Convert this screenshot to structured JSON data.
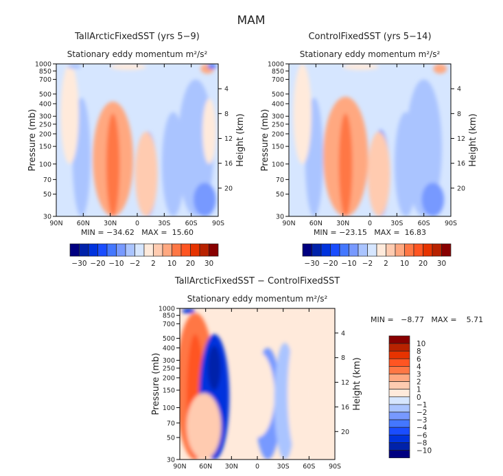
{
  "main_title": "MAM",
  "chart_data": [
    {
      "type": "heatmap",
      "title": "TallArcticFixedSST (yrs 5−9)",
      "subtitle": "Stationary eddy momentum",
      "units": "m²/s²",
      "xlabel": "",
      "ylabel": "Pressure (mb)",
      "y2label": "Height (km)",
      "stats": "MIN = −34.62   MAX =  15.60",
      "x_ticks": [
        "90N",
        "60N",
        "30N",
        "0",
        "30S",
        "60S",
        "90S"
      ],
      "y_ticks": [
        30,
        50,
        70,
        100,
        150,
        200,
        250,
        300,
        400,
        500,
        700,
        850,
        1000
      ],
      "y2_ticks": [
        4,
        8,
        12,
        16,
        20
      ],
      "colorbar_labels": [
        "−30",
        "−20",
        "−10",
        "−2",
        "2",
        "10",
        "20",
        "30"
      ],
      "blobs": [
        [
          27,
          200,
          10,
          9,
          220,
          600
        ],
        [
          27,
          200,
          12,
          3,
          120,
          250
        ],
        [
          -12,
          150,
          -6,
          4,
          60,
          300
        ],
        [
          -10,
          150,
          5,
          5,
          60,
          200
        ],
        [
          62,
          300,
          -3,
          4,
          160,
          500
        ],
        [
          -40,
          250,
          -3,
          5,
          80,
          300
        ],
        [
          -65,
          100,
          -3,
          8,
          600,
          1000
        ],
        [
          -75,
          40,
          -5,
          5,
          25,
          20
        ],
        [
          75,
          400,
          2,
          4,
          600,
          300
        ],
        [
          -78,
          900,
          8,
          3,
          120,
          100
        ],
        [
          -83,
          950,
          -12,
          2,
          60,
          60
        ],
        [
          70,
          950,
          -4,
          3,
          60,
          60
        ],
        [
          10,
          950,
          2,
          8,
          50,
          80
        ],
        [
          -80,
          300,
          2,
          3,
          150,
          200
        ]
      ]
    },
    {
      "type": "heatmap",
      "title": "ControlFixedSST (yrs 5−14)",
      "subtitle": "Stationary eddy momentum",
      "units": "m²/s²",
      "xlabel": "",
      "ylabel": "Pressure (mb)",
      "y2label": "Height (km)",
      "stats": "MIN = −23.15   MAX =  16.83",
      "x_ticks": [
        "90N",
        "60N",
        "30N",
        "0",
        "30S",
        "60S",
        "90S"
      ],
      "y_ticks": [
        30,
        50,
        70,
        100,
        150,
        200,
        250,
        300,
        400,
        500,
        700,
        850,
        1000
      ],
      "y2_ticks": [
        4,
        8,
        12,
        16,
        20
      ],
      "colorbar_labels": [
        "−30",
        "−20",
        "−10",
        "−2",
        "2",
        "10",
        "20",
        "30"
      ],
      "blobs": [
        [
          27,
          220,
          10,
          10,
          250,
          600
        ],
        [
          27,
          200,
          12,
          3,
          120,
          250
        ],
        [
          -12,
          150,
          -6,
          4,
          70,
          300
        ],
        [
          -10,
          150,
          5,
          5,
          60,
          200
        ],
        [
          62,
          300,
          -3,
          4,
          160,
          500
        ],
        [
          -40,
          250,
          -3,
          5,
          80,
          300
        ],
        [
          -60,
          100,
          -3,
          8,
          600,
          1000
        ],
        [
          -70,
          40,
          -5,
          5,
          25,
          20
        ],
        [
          75,
          400,
          2,
          4,
          600,
          300
        ],
        [
          -78,
          900,
          8,
          3,
          120,
          100
        ],
        [
          10,
          950,
          2,
          8,
          50,
          80
        ]
      ]
    },
    {
      "type": "heatmap",
      "title": "TallArcticFixedSST − ControlFixedSST",
      "subtitle": "Stationary eddy momentum",
      "units": "m²/s²",
      "xlabel": "",
      "ylabel": "Pressure (mb)",
      "y2label": "Height (km)",
      "stats": "MIN =   −8.77   MAX =    5.71",
      "x_ticks": [
        "90N",
        "60N",
        "30N",
        "0",
        "30S",
        "60S",
        "90S"
      ],
      "y_ticks": [
        30,
        50,
        70,
        100,
        150,
        200,
        250,
        300,
        400,
        500,
        700,
        850,
        1000
      ],
      "y2_ticks": [
        4,
        8,
        12,
        16,
        20
      ],
      "colorbar_labels": [
        "10",
        "8",
        "6",
        "4",
        "3",
        "2",
        "1",
        "0",
        "−1",
        "−2",
        "−3",
        "−4",
        "−6",
        "−8",
        "−10"
      ],
      "blobs": [
        [
          72,
          250,
          4,
          9,
          650,
          900
        ],
        [
          72,
          300,
          6,
          4,
          250,
          300
        ],
        [
          50,
          300,
          -6,
          7,
          250,
          400
        ],
        [
          50,
          300,
          -8,
          3,
          120,
          150
        ],
        [
          62,
          60,
          2,
          8,
          80,
          60
        ],
        [
          -12,
          250,
          -2,
          6,
          150,
          400
        ],
        [
          0,
          250,
          1,
          8,
          120,
          200
        ],
        [
          -32,
          250,
          -1,
          5,
          200,
          500
        ],
        [
          -50,
          300,
          1,
          6,
          350,
          700
        ],
        [
          -65,
          40,
          1,
          6,
          20,
          40
        ],
        [
          80,
          950,
          -6,
          3,
          60,
          60
        ],
        [
          -75,
          950,
          1,
          3,
          60,
          60
        ]
      ]
    }
  ]
}
